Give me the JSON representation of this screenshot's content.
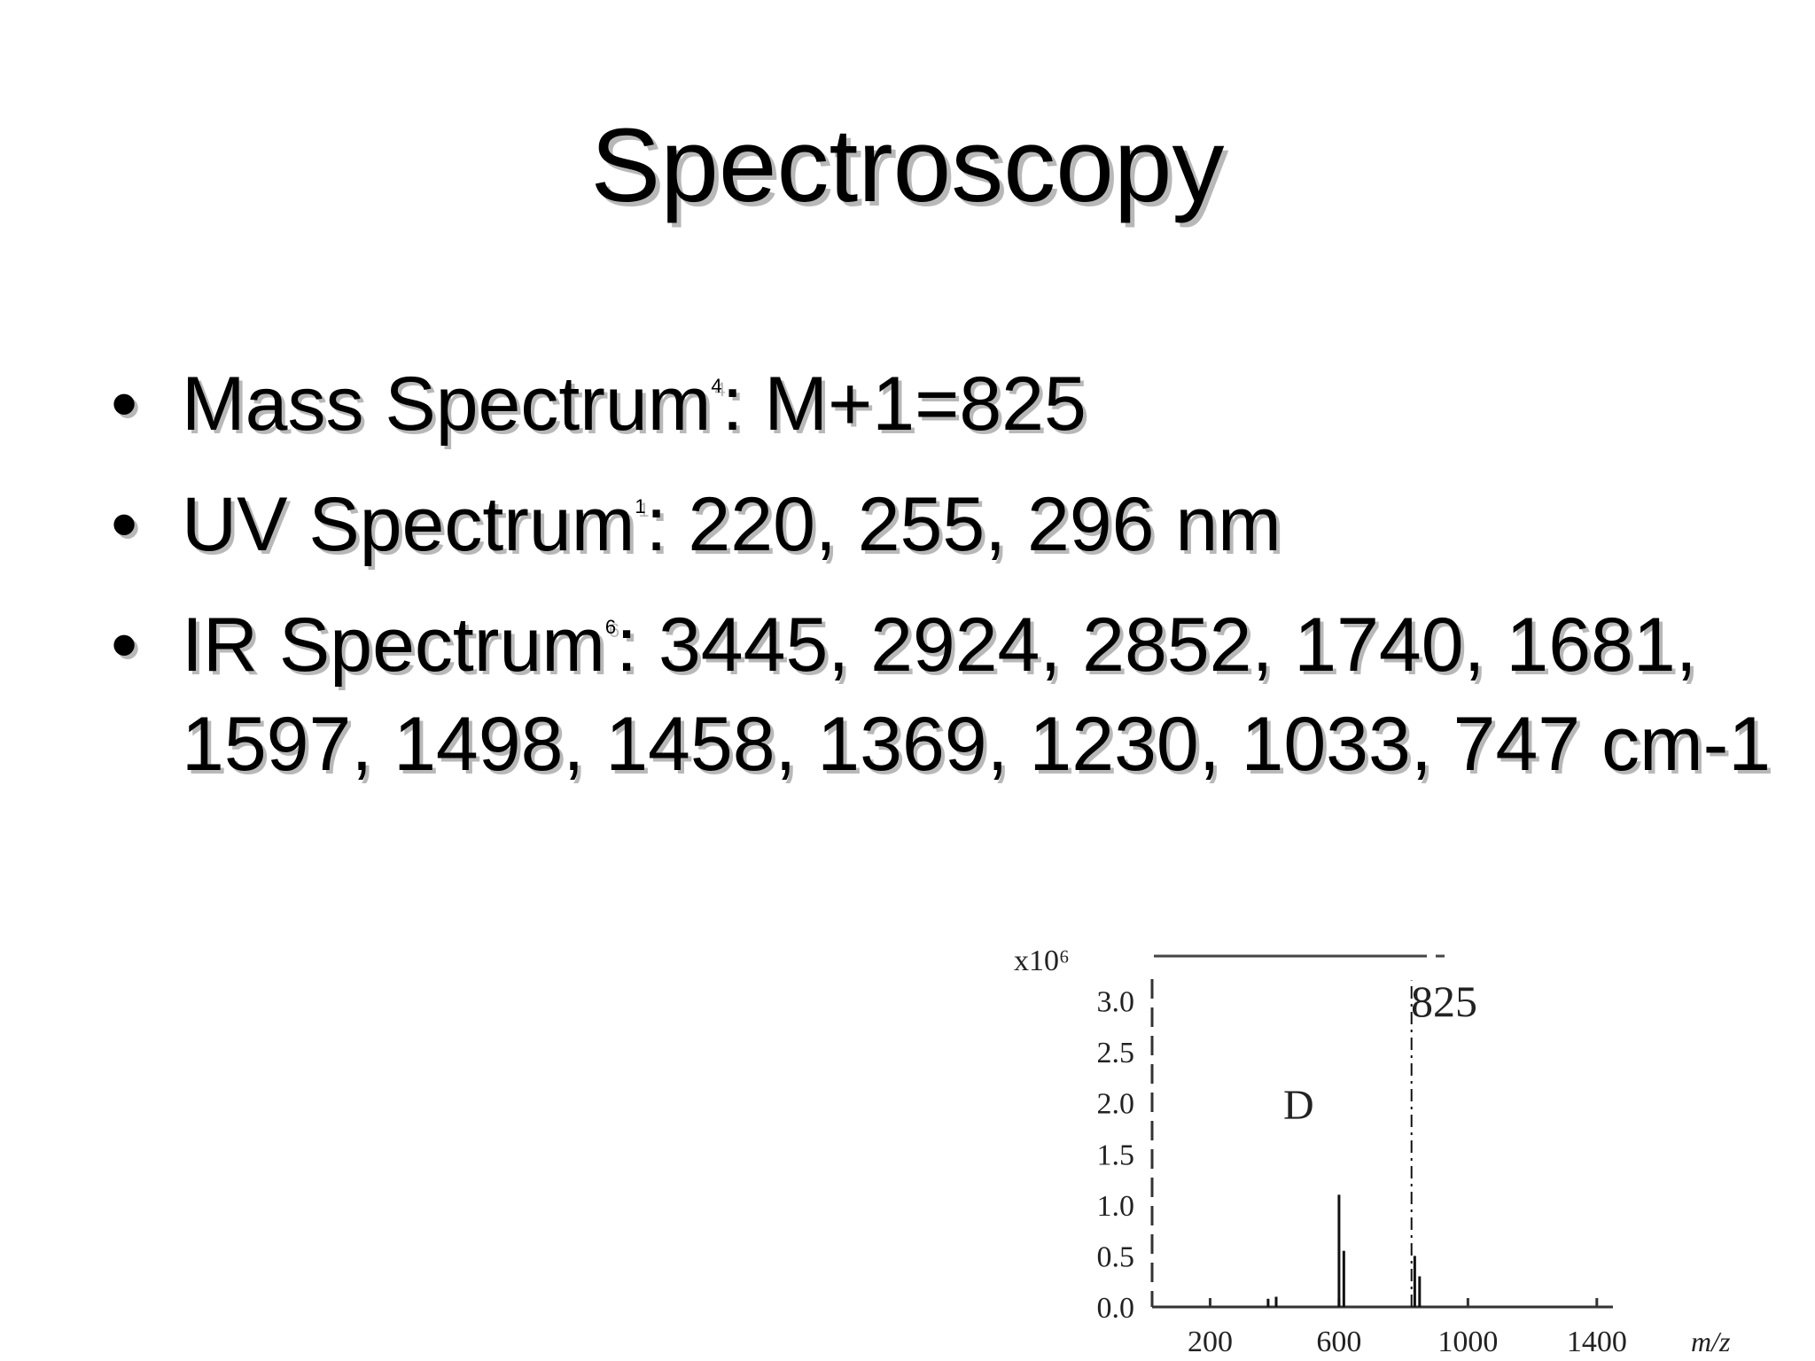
{
  "slide": {
    "title": "Spectroscopy",
    "bullets": [
      {
        "label": "Mass Spectrum",
        "ref": "4",
        "text": ":  M+1=825"
      },
      {
        "label": "UV Spectrum",
        "ref": "1",
        "text": ":  220, 255, 296 nm"
      },
      {
        "label": "IR Spectrum",
        "ref": "6",
        "text": ":  3445, 2924, 2852, 1740, 1681, 1597, 1498, 1458, 1369, 1230, 1033, 747 cm-1"
      }
    ]
  },
  "chart_data": {
    "type": "bar",
    "panel_label": "D",
    "peak_label": "825",
    "y_multiplier": "x10⁶",
    "xlabel": "m/z",
    "x_ticks": [
      "200",
      "600",
      "1000",
      "1400"
    ],
    "y_ticks": [
      "0.0",
      "0.5",
      "1.0",
      "1.5",
      "2.0",
      "2.5",
      "3.0"
    ],
    "xlim": [
      20,
      1450
    ],
    "ylim": [
      0,
      3.3
    ],
    "peaks": [
      {
        "x": 380,
        "y": 0.08
      },
      {
        "x": 405,
        "y": 0.1
      },
      {
        "x": 600,
        "y": 1.1
      },
      {
        "x": 615,
        "y": 0.55
      },
      {
        "x": 825,
        "y": 3.2
      },
      {
        "x": 835,
        "y": 0.5
      },
      {
        "x": 850,
        "y": 0.3
      }
    ]
  }
}
